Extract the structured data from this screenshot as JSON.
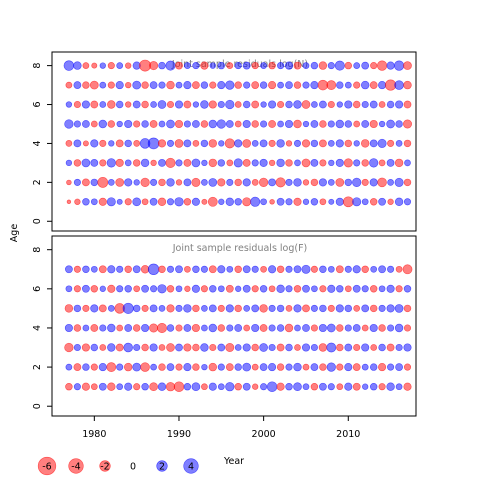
{
  "chart_data": {
    "type": "bubble",
    "y_axis_label": "Age",
    "x_axis_label": "Year",
    "colors": {
      "positive": "#0000ff",
      "negative": "#ff0000",
      "title": "#808080"
    },
    "panels": [
      {
        "title": "Joint sample residuals log(N)",
        "xlim": [
          1975,
          2018
        ],
        "ylim": [
          -0.5,
          8.7
        ],
        "y_ticks": [
          "0",
          "2",
          "4",
          "6",
          "8"
        ],
        "years_start": 1977,
        "ages": [
          1,
          2,
          3,
          4,
          5,
          6,
          7,
          8
        ],
        "residuals": {
          "1": [
            -0.3,
            -0.7,
            1.0,
            0.8,
            -1.2,
            1.5,
            0.6,
            -0.9,
            1.4,
            -0.8,
            1.1,
            -1.3,
            0.9,
            1.6,
            -1.0,
            1.2,
            -0.6,
            -1.8,
            0.7,
            1.3,
            1.0,
            -1.5,
            1.9,
            0.8,
            -0.5,
            1.1,
            0.9,
            -1.2,
            0.7,
            1.0,
            -0.8,
            0.6,
            1.2,
            -2.2,
            1.5,
            0.8,
            -1.0,
            1.1,
            -0.7,
            1.3,
            0.9
          ],
          "2": [
            -0.5,
            0.9,
            -1.1,
            1.0,
            -2.2,
            0.8,
            -1.4,
            1.2,
            0.7,
            -1.6,
            0.9,
            -1.0,
            1.3,
            -0.7,
            1.1,
            -1.5,
            0.8,
            1.4,
            -1.2,
            0.9,
            -1.0,
            1.2,
            -0.8,
            -1.6,
            1.1,
            -1.9,
            0.9,
            1.3,
            -0.7,
            -1.0,
            1.2,
            0.8,
            -1.4,
            1.0,
            1.6,
            -0.9,
            1.2,
            -1.7,
            0.8,
            1.5,
            -1.0
          ],
          "3": [
            0.7,
            -1.0,
            1.4,
            1.1,
            -0.9,
            1.6,
            -1.2,
            0.8,
            -1.0,
            1.3,
            -0.7,
            1.1,
            -1.9,
            0.9,
            -1.1,
            1.4,
            0.7,
            -1.3,
            1.0,
            -0.8,
            1.5,
            -1.1,
            0.9,
            1.2,
            -0.7,
            1.3,
            -1.0,
            0.8,
            -1.4,
            1.1,
            -0.9,
            0.7,
            1.2,
            -1.5,
            0.9,
            -1.0,
            1.6,
            -0.8,
            1.1,
            -1.3,
            0.8
          ],
          "4": [
            -0.8,
            1.1,
            -0.6,
            1.2,
            -0.9,
            0.7,
            -1.1,
            1.0,
            -0.8,
            2.1,
            2.6,
            -1.2,
            0.9,
            -1.4,
            1.1,
            -0.8,
            1.0,
            -1.3,
            0.7,
            -1.9,
            1.2,
            -1.4,
            0.8,
            1.1,
            -0.9,
            1.3,
            -0.7,
            0.9,
            -1.2,
            1.0,
            -1.1,
            0.8,
            1.2,
            -1.0,
            0.7,
            -1.3,
            1.1,
            1.5,
            -0.9,
            0.8,
            -1.0
          ],
          "5": [
            1.6,
            0.9,
            1.1,
            -0.8,
            1.3,
            -1.0,
            0.7,
            1.2,
            -0.9,
            1.0,
            -1.1,
            0.8,
            1.4,
            -1.2,
            0.9,
            1.1,
            -1.0,
            1.3,
            1.6,
            1.1,
            -0.8,
            1.2,
            -1.0,
            0.9,
            -1.1,
            0.8,
            1.2,
            -1.3,
            0.7,
            1.1,
            -1.0,
            0.9,
            1.3,
            1.0,
            -0.8,
            1.1,
            -1.2,
            0.7,
            1.4,
            1.0,
            -1.5
          ],
          "6": [
            0.7,
            -0.9,
            1.2,
            -1.1,
            0.8,
            -1.3,
            1.0,
            -0.7,
            1.1,
            -1.0,
            0.8,
            1.4,
            -0.9,
            1.2,
            -1.1,
            0.7,
            1.3,
            -1.2,
            0.9,
            1.6,
            -0.8,
            1.0,
            -1.1,
            0.7,
            1.2,
            -0.9,
            1.0,
            1.3,
            -1.4,
            0.8,
            1.1,
            -0.9,
            0.7,
            1.2,
            -1.0,
            0.9,
            1.1,
            -0.8,
            1.0,
            1.2,
            -1.1
          ],
          "7": [
            -0.8,
            1.1,
            -1.0,
            -1.4,
            0.8,
            -0.9,
            1.2,
            -0.7,
            1.4,
            -1.0,
            1.1,
            0.9,
            -1.3,
            0.8,
            1.2,
            -1.1,
            1.0,
            -0.9,
            1.2,
            1.6,
            -1.0,
            0.9,
            -1.1,
            1.0,
            -1.2,
            0.8,
            1.1,
            -1.0,
            0.9,
            1.2,
            -2.1,
            -1.8,
            1.0,
            0.8,
            -0.9,
            1.3,
            -1.1,
            1.2,
            -2.4,
            1.7,
            -1.3
          ],
          "8": [
            2.1,
            1.3,
            -0.8,
            -0.6,
            0.7,
            -0.9,
            0.8,
            -0.7,
            1.2,
            -2.7,
            -1.5,
            1.0,
            1.9,
            -1.1,
            0.8,
            0.9,
            -1.2,
            0.7,
            1.0,
            -0.8,
            0.9,
            1.1,
            -0.9,
            0.8,
            -1.0,
            0.9,
            1.2,
            -1.1,
            0.8,
            1.0,
            -1.3,
            0.9,
            1.9,
            -1.0,
            0.8,
            1.1,
            -0.9,
            -2.0,
            1.2,
            2.0,
            -1.4
          ]
        }
      },
      {
        "title": "Joint sample residuals log(F)",
        "xlim": [
          1975,
          2018
        ],
        "ylim": [
          -0.5,
          8.7
        ],
        "y_ticks": [
          "0",
          "2",
          "4",
          "6",
          "8"
        ],
        "years_start": 1977,
        "ages": [
          1,
          2,
          3,
          4,
          5,
          6,
          7
        ],
        "residuals": {
          "1": [
            -1.0,
            0.9,
            -1.2,
            -0.8,
            1.1,
            -1.3,
            0.8,
            1.2,
            -0.9,
            1.0,
            -1.4,
            1.3,
            -1.6,
            -2.1,
            1.0,
            1.4,
            -0.8,
            1.2,
            0.8,
            1.6,
            -1.0,
            1.1,
            -0.7,
            0.9,
            2.1,
            -1.2,
            1.0,
            1.4,
            0.8,
            -1.0,
            1.1,
            0.9,
            -0.8,
            1.2,
            -1.1,
            0.7,
            1.0,
            -0.9,
            1.3,
            0.8,
            -1.2
          ],
          "2": [
            0.8,
            -1.1,
            1.0,
            -0.9,
            1.2,
            -1.8,
            0.9,
            -1.3,
            1.4,
            -1.7,
            0.8,
            -1.0,
            1.1,
            -0.9,
            1.2,
            -1.0,
            0.7,
            -1.3,
            0.9,
            -1.1,
            1.0,
            1.4,
            -0.8,
            1.1,
            1.2,
            -1.0,
            0.9,
            1.3,
            -0.8,
            1.1,
            -1.0,
            1.6,
            -0.9,
            1.2,
            -1.1,
            0.8,
            1.0,
            -1.2,
            0.9,
            1.1,
            -0.9
          ],
          "3": [
            -1.6,
            0.9,
            -1.2,
            1.0,
            -0.8,
            1.3,
            -1.1,
            1.7,
            0.9,
            -1.0,
            1.2,
            -0.8,
            -1.4,
            1.1,
            -1.2,
            -1.0,
            1.3,
            -0.9,
            1.1,
            -1.5,
            0.8,
            1.2,
            -1.0,
            1.4,
            0.9,
            -1.1,
            1.0,
            -0.8,
            1.2,
            0.9,
            -1.3,
            1.8,
            -1.0,
            1.1,
            -0.9,
            1.2,
            -0.8,
            1.0,
            -1.1,
            0.9,
            1.2
          ],
          "4": [
            1.2,
            -1.0,
            0.8,
            -1.1,
            0.9,
            1.3,
            -0.8,
            1.1,
            -1.0,
            1.2,
            -1.5,
            -1.9,
            1.0,
            -0.9,
            1.1,
            -1.2,
            0.8,
            1.3,
            -1.0,
            0.9,
            1.1,
            -0.8,
            1.2,
            -1.1,
            0.9,
            1.0,
            -1.3,
            0.8,
            1.1,
            -0.9,
            1.2,
            1.4,
            -1.0,
            0.9,
            1.1,
            -0.8,
            1.2,
            -1.0,
            0.9,
            1.3,
            -0.9
          ],
          "5": [
            -1.3,
            1.0,
            -0.9,
            1.2,
            -1.1,
            0.8,
            -2.1,
            2.3,
            1.0,
            -0.9,
            1.1,
            0.8,
            -1.2,
            0.9,
            1.3,
            -1.0,
            0.8,
            1.1,
            -0.9,
            1.2,
            -1.0,
            0.8,
            1.1,
            -1.3,
            0.9,
            1.0,
            -0.8,
            1.2,
            -1.1,
            0.9,
            1.0,
            -0.9,
            1.2,
            1.0,
            -0.8,
            1.1,
            -1.0,
            0.9,
            1.2,
            1.4,
            -1.0
          ],
          "6": [
            0.8,
            -0.9,
            1.1,
            -1.0,
            0.7,
            -1.2,
            0.9,
            1.0,
            -0.8,
            1.1,
            0.9,
            1.6,
            -1.0,
            0.8,
            -0.7,
            1.2,
            -0.9,
            1.0,
            0.8,
            -1.1,
            0.7,
            1.1,
            -0.9,
            1.0,
            -0.8,
            1.3,
            0.9,
            -1.0,
            1.1,
            0.8,
            -0.9,
            1.2,
            1.0,
            -0.8,
            1.1,
            0.9,
            -1.0,
            0.8,
            1.2,
            -0.9,
            1.0
          ],
          "7": [
            1.1,
            -0.9,
            1.0,
            0.8,
            -1.1,
            1.2,
            0.9,
            -1.0,
            1.1,
            -1.3,
            2.5,
            -1.0,
            0.9,
            1.1,
            -0.8,
            1.0,
            0.9,
            -1.1,
            1.2,
            0.8,
            -1.0,
            1.1,
            0.9,
            -0.8,
            1.2,
            -1.0,
            0.9,
            1.1,
            1.5,
            -0.9,
            1.0,
            0.8,
            -1.1,
            0.9,
            1.2,
            -1.0,
            0.8,
            1.1,
            0.9,
            -0.8,
            -1.8
          ]
        }
      }
    ],
    "x_ticks": [
      "1980",
      "1990",
      "2000",
      "2010"
    ],
    "legend": {
      "values": [
        -6,
        -4,
        -2,
        0,
        2,
        4
      ],
      "labels": [
        "-6",
        "-4",
        "-2",
        "0",
        "2",
        "4"
      ]
    }
  }
}
